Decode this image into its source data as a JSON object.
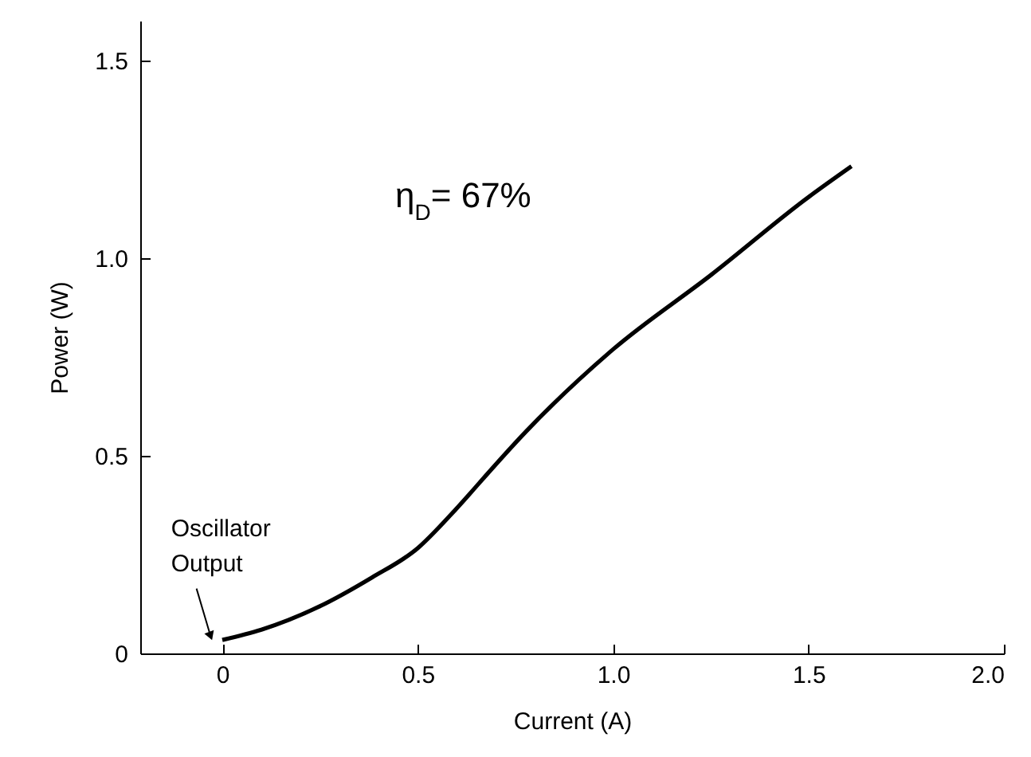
{
  "chart_data": {
    "type": "line",
    "xlabel": "Current (A)",
    "ylabel": "Power (W)",
    "x": [
      0,
      0.1,
      0.247,
      0.383,
      0.5,
      0.587,
      0.63,
      0.654,
      0.777,
      1.0,
      1.253,
      1.5,
      1.61
    ],
    "series": [
      {
        "color": "#000000",
        "values": [
          0.034,
          0.06,
          0.118,
          0.192,
          0.266,
          0.353,
          0.4,
          0.427,
          0.561,
          0.769,
          0.959,
          1.154,
          1.232
        ]
      }
    ],
    "xlim": [
      -0.21,
      2.0
    ],
    "xticks": [
      0,
      {
        "value": 0.5,
        "label": "0.5"
      },
      {
        "value": 1,
        "label": "1.0"
      },
      {
        "value": 1.5,
        "label": "1.5"
      },
      {
        "value": 2,
        "label": "2.0"
      }
    ],
    "ylim": [
      0,
      1.6
    ],
    "yticks": [
      0,
      {
        "value": 0.5,
        "label": "0.5"
      },
      {
        "value": 1,
        "label": "1.0"
      },
      {
        "value": 1.5,
        "label": "1.5"
      }
    ],
    "grid": false,
    "marker": "none",
    "line_style": "solid",
    "annotations": [
      "η$_{D}$= 67%",
      {
        "text": "Oscillator\nOutput",
        "x": 0,
        "y": 0.034
      }
    ]
  }
}
